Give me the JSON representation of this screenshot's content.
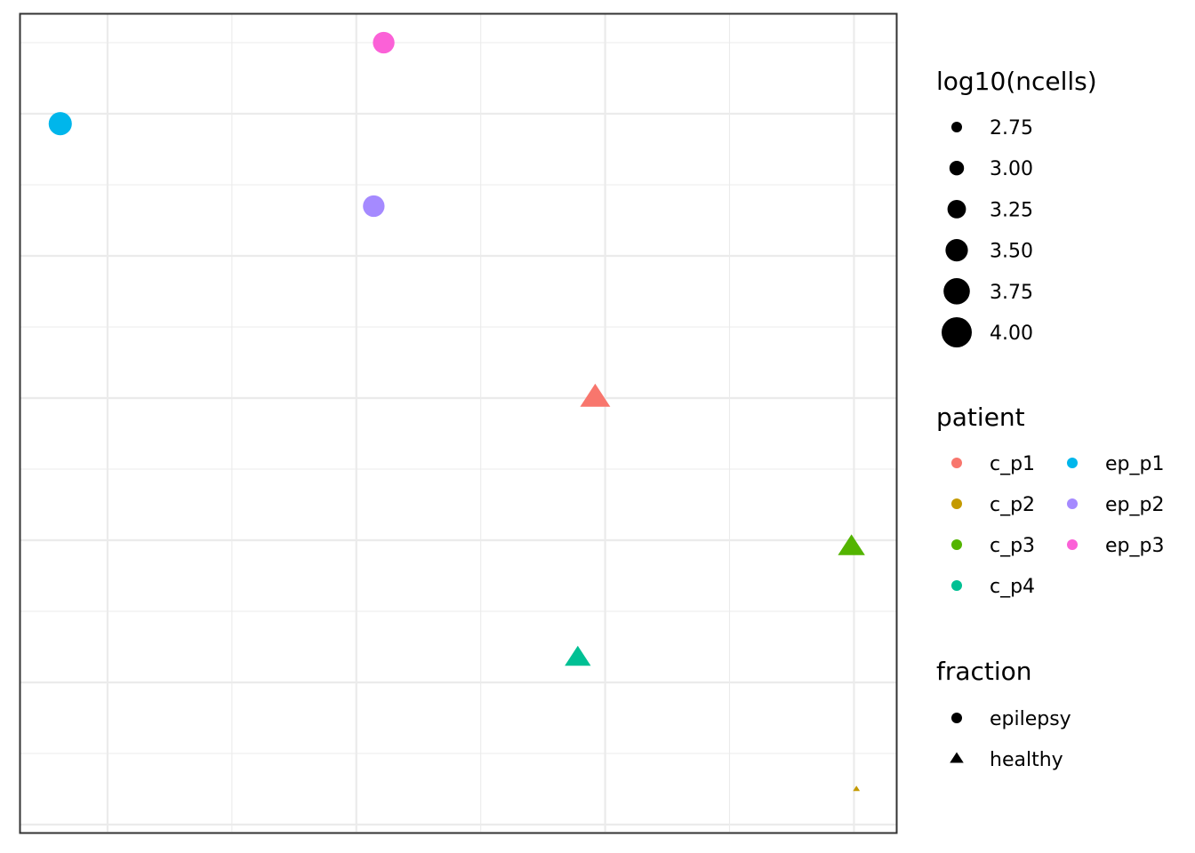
{
  "chart_data": {
    "type": "scatter",
    "title": "",
    "xlabel": "",
    "ylabel": "",
    "xlim": [
      -0.35,
      3.17
    ],
    "ylim": [
      -0.05,
      5.7
    ],
    "grid": true,
    "legend_position": "right",
    "points": [
      {
        "patient": "c_p1",
        "fraction": "healthy",
        "log10_ncells": 3.55,
        "x": 1.96,
        "y": 3.0
      },
      {
        "patient": "c_p2",
        "fraction": "healthy",
        "log10_ncells": 2.0,
        "x": 3.01,
        "y": 0.25
      },
      {
        "patient": "c_p3",
        "fraction": "healthy",
        "log10_ncells": 3.4,
        "x": 2.99,
        "y": 1.95
      },
      {
        "patient": "c_p4",
        "fraction": "healthy",
        "log10_ncells": 3.35,
        "x": 1.89,
        "y": 1.17
      },
      {
        "patient": "ep_p1",
        "fraction": "epilepsy",
        "log10_ncells": 3.55,
        "x": -0.19,
        "y": 4.93
      },
      {
        "patient": "ep_p2",
        "fraction": "epilepsy",
        "log10_ncells": 3.45,
        "x": 1.07,
        "y": 4.35
      },
      {
        "patient": "ep_p3",
        "fraction": "epilepsy",
        "log10_ncells": 3.45,
        "x": 1.11,
        "y": 5.5
      }
    ]
  },
  "legend": {
    "size": {
      "title": "log10(ncells)",
      "items": [
        {
          "label": "2.75",
          "value": 2.75
        },
        {
          "label": "3.00",
          "value": 3.0
        },
        {
          "label": "3.25",
          "value": 3.25
        },
        {
          "label": "3.50",
          "value": 3.5
        },
        {
          "label": "3.75",
          "value": 3.75
        },
        {
          "label": "4.00",
          "value": 4.0
        }
      ]
    },
    "patient": {
      "title": "patient",
      "items": [
        {
          "label": "c_p1",
          "color": "#F8766D"
        },
        {
          "label": "c_p2",
          "color": "#C49A00"
        },
        {
          "label": "c_p3",
          "color": "#53B400"
        },
        {
          "label": "c_p4",
          "color": "#00C094"
        },
        {
          "label": "ep_p1",
          "color": "#00B6EB"
        },
        {
          "label": "ep_p2",
          "color": "#A58AFF"
        },
        {
          "label": "ep_p3",
          "color": "#FB61D7"
        }
      ]
    },
    "fraction": {
      "title": "fraction",
      "items": [
        {
          "label": "epilepsy",
          "shape": "circle"
        },
        {
          "label": "healthy",
          "shape": "triangle"
        }
      ]
    }
  }
}
